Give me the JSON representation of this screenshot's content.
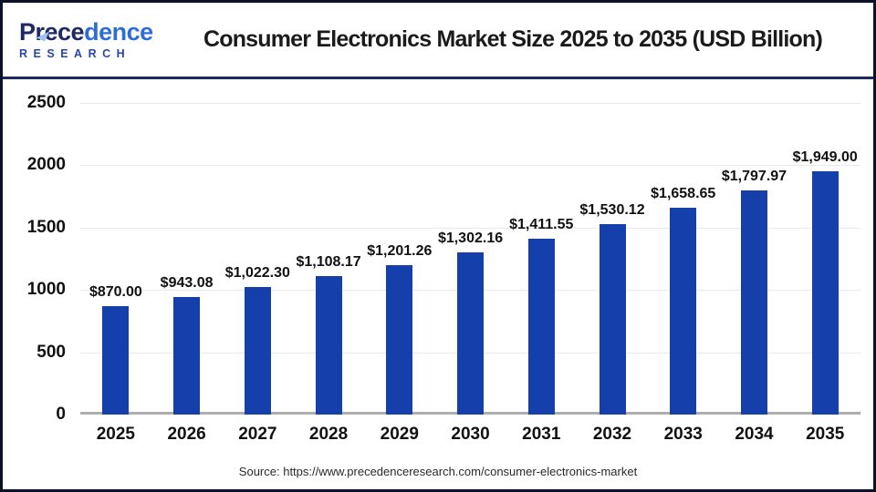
{
  "header": {
    "logo": {
      "word_prefix": "Prece",
      "word_suffix": "dence",
      "sub": "RESEARCH"
    },
    "title": "Consumer Electronics Market Size 2025 to 2035 (USD Billion)"
  },
  "chart_data": {
    "type": "bar",
    "title": "Consumer Electronics Market Size 2025 to 2035 (USD Billion)",
    "unit": "USD Billion",
    "categories": [
      "2025",
      "2026",
      "2027",
      "2028",
      "2029",
      "2030",
      "2031",
      "2032",
      "2033",
      "2034",
      "2035"
    ],
    "values": [
      870.0,
      943.08,
      1022.3,
      1108.17,
      1201.26,
      1302.16,
      1411.55,
      1530.12,
      1658.65,
      1797.97,
      1949.0
    ],
    "labels": [
      "$870.00",
      "$943.08",
      "$1,022.30",
      "$1,108.17",
      "$1,201.26",
      "$1,302.16",
      "$1,411.55",
      "$1,530.12",
      "$1,658.65",
      "$1,797.97",
      "$1,949.00"
    ],
    "xlabel": "",
    "ylabel": "",
    "ylim": [
      0,
      2500
    ],
    "yticks": [
      0,
      500,
      1000,
      1500,
      2000,
      2500
    ],
    "grid": true,
    "legend": false
  },
  "footer": {
    "source": "Source: https://www.precedenceresearch.com/consumer-electronics-market"
  },
  "colors": {
    "bar": "#1540ab",
    "header_rule": "#1b2a5e",
    "frame_border": "#0d122b",
    "gridline": "#e9e9e9",
    "baseline": "#adadad",
    "logo_navy": "#1d2a66",
    "logo_blue": "#2e6cd6",
    "logo_accent": "#9fc3ec"
  }
}
